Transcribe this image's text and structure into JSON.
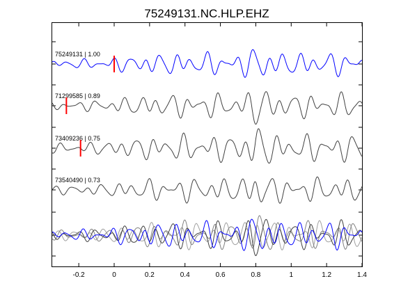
{
  "chart_data": {
    "type": "line",
    "title": "75249131.NC.HLP.EHZ",
    "xlim": [
      -0.35,
      1.4
    ],
    "xticks": [
      -0.2,
      0,
      0.2,
      0.4,
      0.6,
      0.8,
      1,
      1.2,
      1.4
    ],
    "xtick_labels": [
      "-0.2",
      "0",
      "0.2",
      "0.4",
      "0.6",
      "0.8",
      "1",
      "1.2",
      "1.4"
    ],
    "xlabel": "",
    "ylabel": "",
    "grid": false,
    "traces": [
      {
        "id": "75249131",
        "correlation": "1.00",
        "label": "75249131 | 1.00",
        "color": "#0000ff",
        "pick_time": 0.0,
        "pick_color": "#ff0000",
        "seed": 1
      },
      {
        "id": "71299585",
        "correlation": "0.89",
        "label": "71299585 | 0.89",
        "color": "#404040",
        "pick_time": -0.27,
        "pick_color": "#ff0000",
        "seed": 2
      },
      {
        "id": "73409236",
        "correlation": "0.75",
        "label": "73409236 | 0.75",
        "color": "#404040",
        "pick_time": -0.19,
        "pick_color": "#ff0000",
        "seed": 3
      },
      {
        "id": "73540490",
        "correlation": "0.73",
        "label": "73540490 | 0.73",
        "color": "#404040",
        "pick_time": null,
        "pick_color": "#ff0000",
        "seed": 4
      }
    ],
    "stack": {
      "description_colors": [
        "#0000ff",
        "#404040",
        "#808080",
        "#a0a0a0"
      ]
    }
  }
}
